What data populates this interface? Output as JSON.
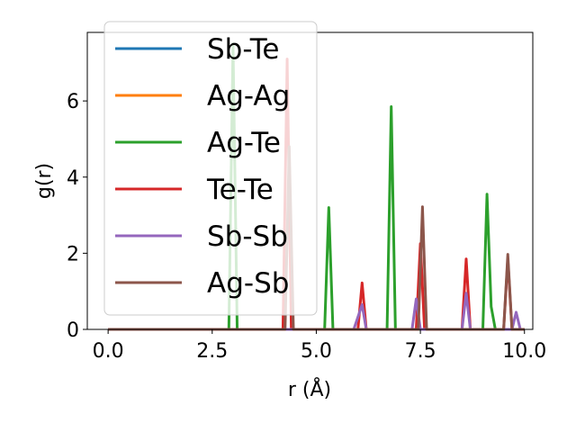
{
  "chart_data": {
    "type": "line",
    "xlabel": "r (Å)",
    "ylabel": "g(r)",
    "xlim": [
      -0.5,
      10.2
    ],
    "ylim": [
      0,
      7.8
    ],
    "xticks": [
      0.0,
      2.5,
      5.0,
      7.5,
      10.0
    ],
    "xtick_labels": [
      "0.0",
      "2.5",
      "5.0",
      "7.5",
      "10.0"
    ],
    "yticks": [
      0,
      2,
      4,
      6
    ],
    "ytick_labels": [
      "0",
      "2",
      "4",
      "6"
    ],
    "grid": false,
    "legend_position": "top-left",
    "series": [
      {
        "name": "Sb-Te",
        "color": "#1f77b4",
        "points": [
          [
            0,
            0
          ],
          [
            10.0,
            0
          ]
        ]
      },
      {
        "name": "Ag-Ag",
        "color": "#ff7f0e",
        "points": [
          [
            0,
            0
          ],
          [
            10.0,
            0
          ]
        ]
      },
      {
        "name": "Ag-Te",
        "color": "#2ca02c",
        "points": [
          [
            0,
            0
          ],
          [
            2.9,
            0
          ],
          [
            3.0,
            7.5
          ],
          [
            3.1,
            0
          ],
          [
            5.2,
            0
          ],
          [
            5.3,
            3.2
          ],
          [
            5.4,
            0
          ],
          [
            6.7,
            0
          ],
          [
            6.8,
            5.85
          ],
          [
            6.9,
            0
          ],
          [
            9.0,
            0
          ],
          [
            9.1,
            3.55
          ],
          [
            9.2,
            0.6
          ],
          [
            9.3,
            0
          ],
          [
            10.0,
            0
          ]
        ]
      },
      {
        "name": "Te-Te",
        "color": "#d62728",
        "points": [
          [
            0,
            0
          ],
          [
            4.2,
            0
          ],
          [
            4.3,
            7.1
          ],
          [
            4.4,
            0
          ],
          [
            6.0,
            0
          ],
          [
            6.1,
            1.22
          ],
          [
            6.2,
            0
          ],
          [
            7.4,
            0
          ],
          [
            7.5,
            2.25
          ],
          [
            7.6,
            0
          ],
          [
            8.5,
            0
          ],
          [
            8.6,
            1.85
          ],
          [
            8.7,
            0
          ],
          [
            9.5,
            0
          ],
          [
            9.6,
            1.85
          ],
          [
            9.7,
            0
          ],
          [
            10.0,
            0
          ]
        ]
      },
      {
        "name": "Sb-Sb",
        "color": "#9467bd",
        "points": [
          [
            0,
            0
          ],
          [
            5.9,
            0
          ],
          [
            6.1,
            0.65
          ],
          [
            6.2,
            0
          ],
          [
            7.3,
            0
          ],
          [
            7.4,
            0.8
          ],
          [
            7.5,
            0
          ],
          [
            8.5,
            0
          ],
          [
            8.6,
            0.95
          ],
          [
            8.7,
            0
          ],
          [
            9.7,
            0
          ],
          [
            9.8,
            0.45
          ],
          [
            9.9,
            0
          ],
          [
            10.0,
            0
          ]
        ]
      },
      {
        "name": "Ag-Sb",
        "color": "#8c564b",
        "points": [
          [
            0,
            0
          ],
          [
            4.25,
            0
          ],
          [
            4.35,
            4.8
          ],
          [
            4.45,
            0
          ],
          [
            7.45,
            0
          ],
          [
            7.55,
            3.22
          ],
          [
            7.65,
            0
          ],
          [
            9.5,
            0
          ],
          [
            9.6,
            1.97
          ],
          [
            9.7,
            0
          ],
          [
            10.0,
            0
          ]
        ]
      }
    ]
  }
}
